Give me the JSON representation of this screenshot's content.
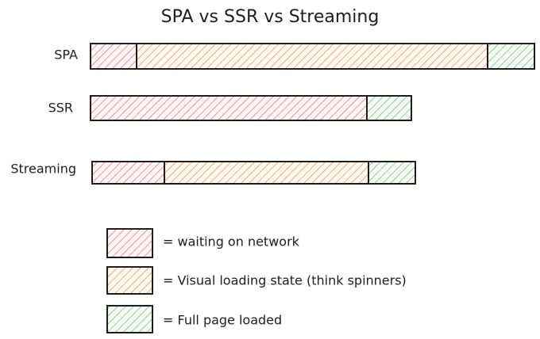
{
  "title": "SPA vs SSR vs Streaming",
  "rows": [
    {
      "label": "SPA"
    },
    {
      "label": "SSR"
    },
    {
      "label": "Streaming"
    }
  ],
  "legend": [
    {
      "label": "= waiting on network"
    },
    {
      "label": "= Visual loading state (think spinners)"
    },
    {
      "label": "= Full page loaded"
    }
  ]
}
